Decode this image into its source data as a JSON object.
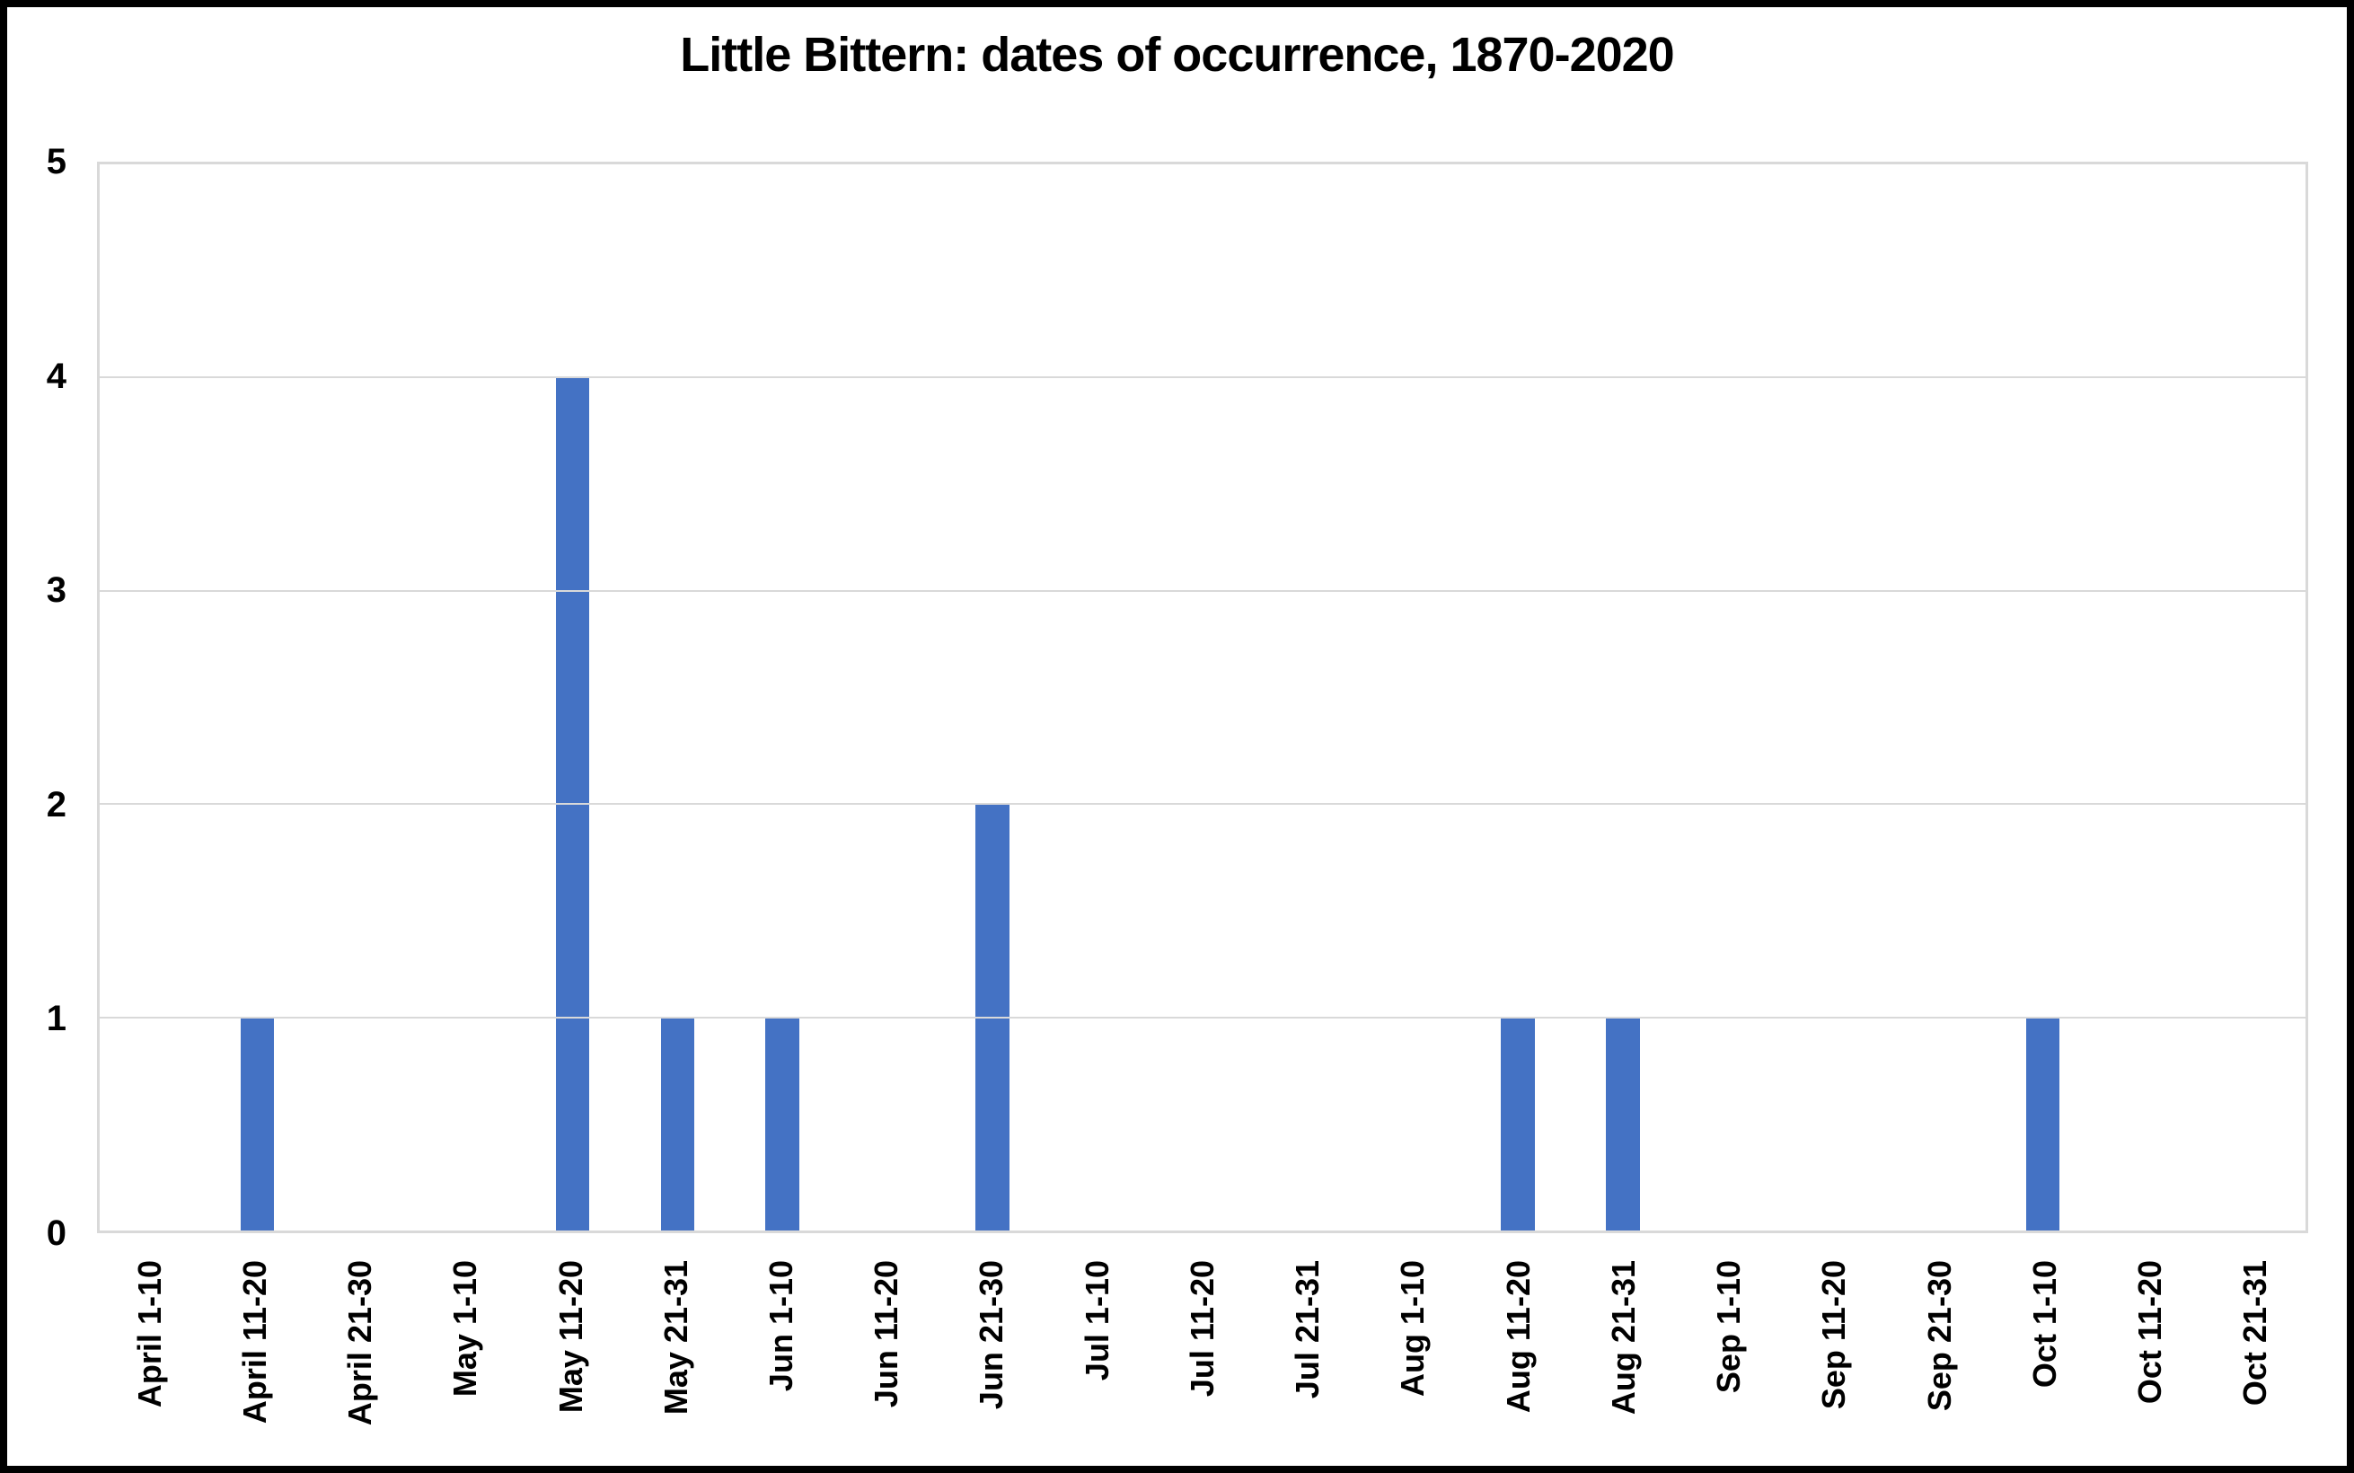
{
  "frame": {
    "background": "#FFFFFF",
    "border_color": "#000000"
  },
  "chart_data": {
    "type": "bar",
    "title": "Little Bittern: dates of occurrence, 1870-2020",
    "categories": [
      "April 1-10",
      "April 11-20",
      "April 21-30",
      "May 1-10",
      "May 11-20",
      "May 21-31",
      "Jun 1-10",
      "Jun 11-20",
      "Jun 21-30",
      "Jul 1-10",
      "Jul 11-20",
      "Jul 21-31",
      "Aug 1-10",
      "Aug 11-20",
      "Aug 21-31",
      "Sep 1-10",
      "Sep 11-20",
      "Sep 21-30",
      "Oct 1-10",
      "Oct 11-20",
      "Oct 21-31"
    ],
    "values": [
      0,
      1,
      0,
      0,
      4,
      1,
      1,
      0,
      2,
      0,
      0,
      0,
      0,
      1,
      1,
      0,
      0,
      0,
      1,
      0,
      0
    ],
    "xlabel": "",
    "ylabel": "",
    "ylim": [
      0,
      5
    ],
    "yticks": [
      0,
      1,
      2,
      3,
      4,
      5
    ],
    "grid": true,
    "legend": false,
    "bar_color": "#4472C4",
    "gridline_color": "#D9D9D9",
    "plot_border_color": "#D9D9D9",
    "axis_text_color": "#000000"
  }
}
